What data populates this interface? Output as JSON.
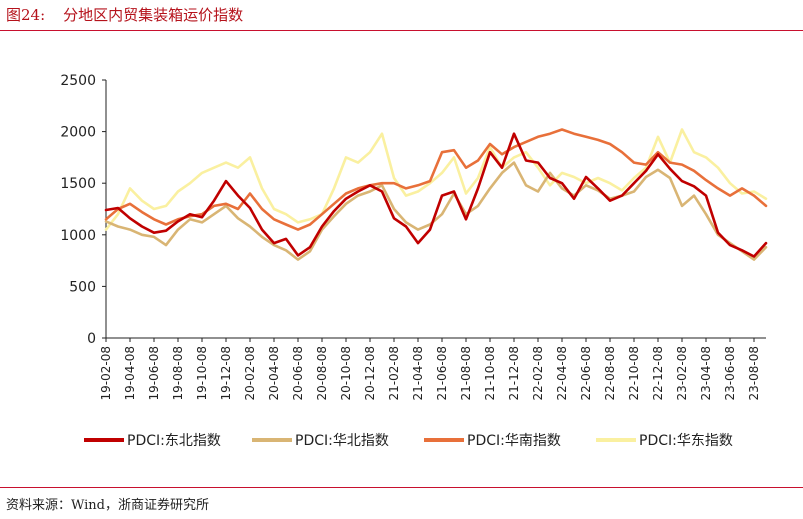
{
  "figure": {
    "number": "图24:",
    "title": "分地区内贸集装箱运价指数",
    "source": "资料来源：Wind，浙商证券研究所"
  },
  "chart_data": {
    "type": "line",
    "title": "分地区内贸集装箱运价指数",
    "xlabel": "",
    "ylabel": "",
    "ylim": [
      0,
      2500
    ],
    "yticks": [
      0,
      500,
      1000,
      1500,
      2000,
      2500
    ],
    "x_range": [
      "2019-02",
      "2023-09"
    ],
    "xticks": [
      "19-02-08",
      "19-04-08",
      "19-06-08",
      "19-08-08",
      "19-10-08",
      "19-12-08",
      "20-02-08",
      "20-04-08",
      "20-06-08",
      "20-08-08",
      "20-10-08",
      "20-12-08",
      "21-02-08",
      "21-04-08",
      "21-06-08",
      "21-08-08",
      "21-10-08",
      "21-12-08",
      "22-02-08",
      "22-04-08",
      "22-06-08",
      "22-08-08",
      "22-10-08",
      "22-12-08",
      "23-02-08",
      "23-04-08",
      "23-06-08",
      "23-08-08"
    ],
    "grid": false,
    "legend_position": "bottom",
    "series": [
      {
        "name": "PDCI:东北指数",
        "color": "#c00000",
        "points": [
          [
            "2019-02",
            1240
          ],
          [
            "2019-03",
            1260
          ],
          [
            "2019-04",
            1160
          ],
          [
            "2019-05",
            1080
          ],
          [
            "2019-06",
            1020
          ],
          [
            "2019-07",
            1040
          ],
          [
            "2019-08",
            1130
          ],
          [
            "2019-09",
            1200
          ],
          [
            "2019-10",
            1170
          ],
          [
            "2019-11",
            1330
          ],
          [
            "2019-12",
            1520
          ],
          [
            "2020-01",
            1380
          ],
          [
            "2020-02",
            1260
          ],
          [
            "2020-03",
            1050
          ],
          [
            "2020-04",
            920
          ],
          [
            "2020-05",
            960
          ],
          [
            "2020-06",
            800
          ],
          [
            "2020-07",
            880
          ],
          [
            "2020-08",
            1080
          ],
          [
            "2020-09",
            1230
          ],
          [
            "2020-10",
            1350
          ],
          [
            "2020-11",
            1420
          ],
          [
            "2020-12",
            1480
          ],
          [
            "2021-01",
            1420
          ],
          [
            "2021-02",
            1160
          ],
          [
            "2021-03",
            1080
          ],
          [
            "2021-04",
            920
          ],
          [
            "2021-05",
            1050
          ],
          [
            "2021-06",
            1380
          ],
          [
            "2021-07",
            1420
          ],
          [
            "2021-08",
            1150
          ],
          [
            "2021-09",
            1450
          ],
          [
            "2021-10",
            1800
          ],
          [
            "2021-11",
            1650
          ],
          [
            "2021-12",
            1980
          ],
          [
            "2022-01",
            1720
          ],
          [
            "2022-02",
            1700
          ],
          [
            "2022-03",
            1550
          ],
          [
            "2022-04",
            1500
          ],
          [
            "2022-05",
            1350
          ],
          [
            "2022-06",
            1560
          ],
          [
            "2022-07",
            1450
          ],
          [
            "2022-08",
            1330
          ],
          [
            "2022-09",
            1380
          ],
          [
            "2022-10",
            1500
          ],
          [
            "2022-11",
            1620
          ],
          [
            "2022-12",
            1780
          ],
          [
            "2023-01",
            1640
          ],
          [
            "2023-02",
            1520
          ],
          [
            "2023-03",
            1470
          ],
          [
            "2023-04",
            1380
          ],
          [
            "2023-05",
            1020
          ],
          [
            "2023-06",
            900
          ],
          [
            "2023-07",
            850
          ],
          [
            "2023-08",
            790
          ],
          [
            "2023-09",
            920
          ]
        ]
      },
      {
        "name": "PDCI:华北指数",
        "color": "#d9b574",
        "points": [
          [
            "2019-02",
            1130
          ],
          [
            "2019-03",
            1080
          ],
          [
            "2019-04",
            1050
          ],
          [
            "2019-05",
            1000
          ],
          [
            "2019-06",
            980
          ],
          [
            "2019-07",
            900
          ],
          [
            "2019-08",
            1050
          ],
          [
            "2019-09",
            1150
          ],
          [
            "2019-10",
            1120
          ],
          [
            "2019-11",
            1200
          ],
          [
            "2019-12",
            1280
          ],
          [
            "2020-01",
            1160
          ],
          [
            "2020-02",
            1080
          ],
          [
            "2020-03",
            980
          ],
          [
            "2020-04",
            900
          ],
          [
            "2020-05",
            850
          ],
          [
            "2020-06",
            760
          ],
          [
            "2020-07",
            840
          ],
          [
            "2020-08",
            1050
          ],
          [
            "2020-09",
            1180
          ],
          [
            "2020-10",
            1300
          ],
          [
            "2020-11",
            1380
          ],
          [
            "2020-12",
            1420
          ],
          [
            "2021-01",
            1480
          ],
          [
            "2021-02",
            1250
          ],
          [
            "2021-03",
            1120
          ],
          [
            "2021-04",
            1050
          ],
          [
            "2021-05",
            1100
          ],
          [
            "2021-06",
            1200
          ],
          [
            "2021-07",
            1400
          ],
          [
            "2021-08",
            1200
          ],
          [
            "2021-09",
            1280
          ],
          [
            "2021-10",
            1450
          ],
          [
            "2021-11",
            1600
          ],
          [
            "2021-12",
            1700
          ],
          [
            "2022-01",
            1480
          ],
          [
            "2022-02",
            1420
          ],
          [
            "2022-03",
            1600
          ],
          [
            "2022-04",
            1450
          ],
          [
            "2022-05",
            1380
          ],
          [
            "2022-06",
            1480
          ],
          [
            "2022-07",
            1430
          ],
          [
            "2022-08",
            1350
          ],
          [
            "2022-09",
            1380
          ],
          [
            "2022-10",
            1420
          ],
          [
            "2022-11",
            1560
          ],
          [
            "2022-12",
            1630
          ],
          [
            "2023-01",
            1550
          ],
          [
            "2023-02",
            1280
          ],
          [
            "2023-03",
            1380
          ],
          [
            "2023-04",
            1200
          ],
          [
            "2023-05",
            1000
          ],
          [
            "2023-06",
            920
          ],
          [
            "2023-07",
            840
          ],
          [
            "2023-08",
            760
          ],
          [
            "2023-09",
            880
          ]
        ]
      },
      {
        "name": "PDCI:华南指数",
        "color": "#e8703a",
        "points": [
          [
            "2019-02",
            1150
          ],
          [
            "2019-03",
            1250
          ],
          [
            "2019-04",
            1300
          ],
          [
            "2019-05",
            1220
          ],
          [
            "2019-06",
            1150
          ],
          [
            "2019-07",
            1100
          ],
          [
            "2019-08",
            1150
          ],
          [
            "2019-09",
            1180
          ],
          [
            "2019-10",
            1200
          ],
          [
            "2019-11",
            1280
          ],
          [
            "2019-12",
            1300
          ],
          [
            "2020-01",
            1250
          ],
          [
            "2020-02",
            1400
          ],
          [
            "2020-03",
            1250
          ],
          [
            "2020-04",
            1150
          ],
          [
            "2020-05",
            1100
          ],
          [
            "2020-06",
            1050
          ],
          [
            "2020-07",
            1100
          ],
          [
            "2020-08",
            1200
          ],
          [
            "2020-09",
            1300
          ],
          [
            "2020-10",
            1400
          ],
          [
            "2020-11",
            1450
          ],
          [
            "2020-12",
            1480
          ],
          [
            "2021-01",
            1500
          ],
          [
            "2021-02",
            1500
          ],
          [
            "2021-03",
            1450
          ],
          [
            "2021-04",
            1480
          ],
          [
            "2021-05",
            1520
          ],
          [
            "2021-06",
            1800
          ],
          [
            "2021-07",
            1820
          ],
          [
            "2021-08",
            1650
          ],
          [
            "2021-09",
            1720
          ],
          [
            "2021-10",
            1880
          ],
          [
            "2021-11",
            1780
          ],
          [
            "2021-12",
            1850
          ],
          [
            "2022-01",
            1900
          ],
          [
            "2022-02",
            1950
          ],
          [
            "2022-03",
            1980
          ],
          [
            "2022-04",
            2020
          ],
          [
            "2022-05",
            1980
          ],
          [
            "2022-06",
            1950
          ],
          [
            "2022-07",
            1920
          ],
          [
            "2022-08",
            1880
          ],
          [
            "2022-09",
            1800
          ],
          [
            "2022-10",
            1700
          ],
          [
            "2022-11",
            1680
          ],
          [
            "2022-12",
            1800
          ],
          [
            "2023-01",
            1700
          ],
          [
            "2023-02",
            1680
          ],
          [
            "2023-03",
            1620
          ],
          [
            "2023-04",
            1530
          ],
          [
            "2023-05",
            1450
          ],
          [
            "2023-06",
            1380
          ],
          [
            "2023-07",
            1450
          ],
          [
            "2023-08",
            1380
          ],
          [
            "2023-09",
            1280
          ]
        ]
      },
      {
        "name": "PDCI:华东指数",
        "color": "#faf0a0",
        "points": [
          [
            "2019-02",
            1050
          ],
          [
            "2019-03",
            1200
          ],
          [
            "2019-04",
            1450
          ],
          [
            "2019-05",
            1330
          ],
          [
            "2019-06",
            1250
          ],
          [
            "2019-07",
            1280
          ],
          [
            "2019-08",
            1420
          ],
          [
            "2019-09",
            1500
          ],
          [
            "2019-10",
            1600
          ],
          [
            "2019-11",
            1650
          ],
          [
            "2019-12",
            1700
          ],
          [
            "2020-01",
            1650
          ],
          [
            "2020-02",
            1750
          ],
          [
            "2020-03",
            1450
          ],
          [
            "2020-04",
            1250
          ],
          [
            "2020-05",
            1200
          ],
          [
            "2020-06",
            1120
          ],
          [
            "2020-07",
            1150
          ],
          [
            "2020-08",
            1200
          ],
          [
            "2020-09",
            1450
          ],
          [
            "2020-10",
            1750
          ],
          [
            "2020-11",
            1700
          ],
          [
            "2020-12",
            1800
          ],
          [
            "2021-01",
            1980
          ],
          [
            "2021-02",
            1550
          ],
          [
            "2021-03",
            1380
          ],
          [
            "2021-04",
            1420
          ],
          [
            "2021-05",
            1500
          ],
          [
            "2021-06",
            1600
          ],
          [
            "2021-07",
            1750
          ],
          [
            "2021-08",
            1400
          ],
          [
            "2021-09",
            1550
          ],
          [
            "2021-10",
            1850
          ],
          [
            "2021-11",
            1650
          ],
          [
            "2021-12",
            1750
          ],
          [
            "2022-01",
            1800
          ],
          [
            "2022-02",
            1650
          ],
          [
            "2022-03",
            1480
          ],
          [
            "2022-04",
            1600
          ],
          [
            "2022-05",
            1560
          ],
          [
            "2022-06",
            1500
          ],
          [
            "2022-07",
            1550
          ],
          [
            "2022-08",
            1500
          ],
          [
            "2022-09",
            1430
          ],
          [
            "2022-10",
            1550
          ],
          [
            "2022-11",
            1650
          ],
          [
            "2022-12",
            1950
          ],
          [
            "2023-01",
            1700
          ],
          [
            "2023-02",
            2020
          ],
          [
            "2023-03",
            1800
          ],
          [
            "2023-04",
            1750
          ],
          [
            "2023-05",
            1650
          ],
          [
            "2023-06",
            1500
          ],
          [
            "2023-07",
            1400
          ],
          [
            "2023-08",
            1420
          ],
          [
            "2023-09",
            1350
          ]
        ]
      }
    ]
  }
}
